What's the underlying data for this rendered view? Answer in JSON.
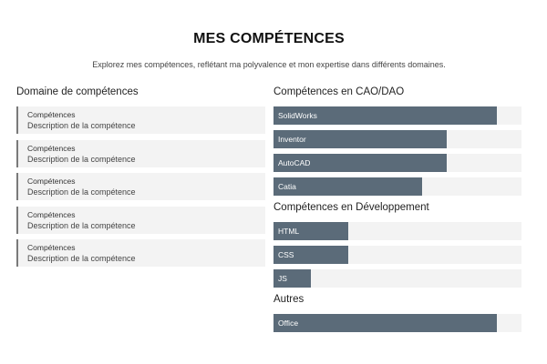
{
  "header": {
    "title": "MES COMPÉTENCES",
    "subtitle": "Explorez mes compétences, reflétant ma polyvalence et mon expertise dans différents domaines."
  },
  "domains": {
    "title": "Domaine de compétences",
    "cards": [
      {
        "title": "Compétences",
        "description": "Description de la compétence"
      },
      {
        "title": "Compétences",
        "description": "Description de la compétence"
      },
      {
        "title": "Compétences",
        "description": "Description de la compétence"
      },
      {
        "title": "Compétences",
        "description": "Description de la compétence"
      },
      {
        "title": "Compétences",
        "description": "Description de la compétence"
      }
    ]
  },
  "skill_groups": [
    {
      "title": "Compétences en CAO/DAO",
      "skills": [
        {
          "name": "SolidWorks",
          "level": 0.9
        },
        {
          "name": "Inventor",
          "level": 0.7
        },
        {
          "name": "AutoCAD",
          "level": 0.7
        },
        {
          "name": "Catia",
          "level": 0.6
        }
      ]
    },
    {
      "title": "Compétences en Développement",
      "skills": [
        {
          "name": "HTML",
          "level": 0.3
        },
        {
          "name": "CSS",
          "level": 0.3
        },
        {
          "name": "JS",
          "level": 0.15
        }
      ]
    },
    {
      "title": "Autres",
      "skills": [
        {
          "name": "Office",
          "level": 0.9
        }
      ]
    }
  ],
  "colors": {
    "bar_fill": "#5b6b79",
    "bar_track": "#f3f3f3",
    "card_bg": "#f3f3f3",
    "card_border": "#7a7a7a"
  }
}
